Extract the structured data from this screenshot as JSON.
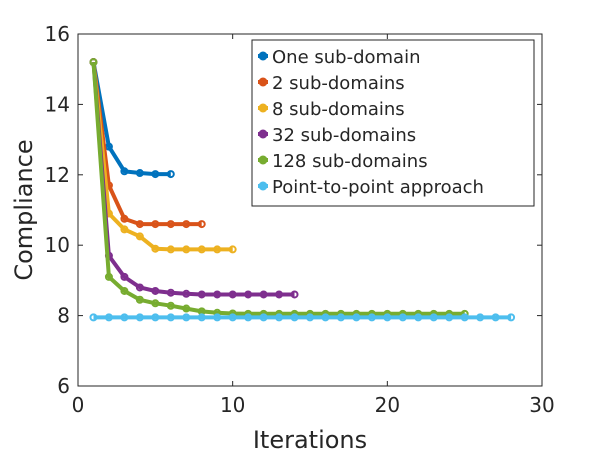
{
  "chart_data": {
    "type": "line",
    "title": "",
    "xlabel": "Iterations",
    "ylabel": "Compliance",
    "xlim": [
      0,
      30
    ],
    "ylim": [
      6,
      16
    ],
    "xticks": [
      0,
      10,
      20,
      30
    ],
    "yticks": [
      6,
      8,
      10,
      12,
      14,
      16
    ],
    "xtick_labels": [
      "0",
      "10",
      "20",
      "30"
    ],
    "ytick_labels": [
      "6",
      "8",
      "10",
      "12",
      "14",
      "16"
    ],
    "grid": false,
    "legend_position": "top-right",
    "series": [
      {
        "name": "One sub-domain",
        "color": "#0072BD",
        "x": [
          1,
          2,
          3,
          4,
          5,
          6
        ],
        "y": [
          15.2,
          12.8,
          12.1,
          12.05,
          12.02,
          12.02
        ]
      },
      {
        "name": "2 sub-domains",
        "color": "#D95319",
        "x": [
          1,
          2,
          3,
          4,
          5,
          6,
          7,
          8
        ],
        "y": [
          15.2,
          11.7,
          10.75,
          10.6,
          10.6,
          10.6,
          10.6,
          10.6
        ]
      },
      {
        "name": "8 sub-domains",
        "color": "#EDB120",
        "x": [
          1,
          2,
          3,
          4,
          5,
          6,
          7,
          8,
          9,
          10
        ],
        "y": [
          15.2,
          10.9,
          10.45,
          10.25,
          9.9,
          9.88,
          9.88,
          9.88,
          9.88,
          9.88
        ]
      },
      {
        "name": "32 sub-domains",
        "color": "#7E2F8E",
        "x": [
          1,
          2,
          3,
          4,
          5,
          6,
          7,
          8,
          9,
          10,
          11,
          12,
          13,
          14
        ],
        "y": [
          15.2,
          9.7,
          9.1,
          8.8,
          8.7,
          8.65,
          8.62,
          8.6,
          8.6,
          8.6,
          8.6,
          8.6,
          8.6,
          8.6
        ]
      },
      {
        "name": "128 sub-domains",
        "color": "#77AC30",
        "x": [
          1,
          2,
          3,
          4,
          5,
          6,
          7,
          8,
          9,
          10,
          11,
          12,
          13,
          14,
          15,
          16,
          17,
          18,
          19,
          20,
          21,
          22,
          23,
          24,
          25
        ],
        "y": [
          15.2,
          9.1,
          8.7,
          8.45,
          8.35,
          8.28,
          8.2,
          8.12,
          8.08,
          8.06,
          8.05,
          8.05,
          8.05,
          8.05,
          8.05,
          8.05,
          8.05,
          8.05,
          8.05,
          8.05,
          8.05,
          8.05,
          8.05,
          8.05,
          8.05
        ]
      },
      {
        "name": "Point-to-point approach",
        "color": "#4DBEEE",
        "x": [
          1,
          2,
          3,
          4,
          5,
          6,
          7,
          8,
          9,
          10,
          11,
          12,
          13,
          14,
          15,
          16,
          17,
          18,
          19,
          20,
          21,
          22,
          23,
          24,
          25,
          26,
          27,
          28
        ],
        "y": [
          7.95,
          7.95,
          7.95,
          7.95,
          7.95,
          7.95,
          7.95,
          7.95,
          7.95,
          7.95,
          7.95,
          7.95,
          7.95,
          7.95,
          7.95,
          7.95,
          7.95,
          7.95,
          7.95,
          7.95,
          7.95,
          7.95,
          7.95,
          7.95,
          7.95,
          7.95,
          7.95,
          7.95
        ]
      }
    ]
  }
}
